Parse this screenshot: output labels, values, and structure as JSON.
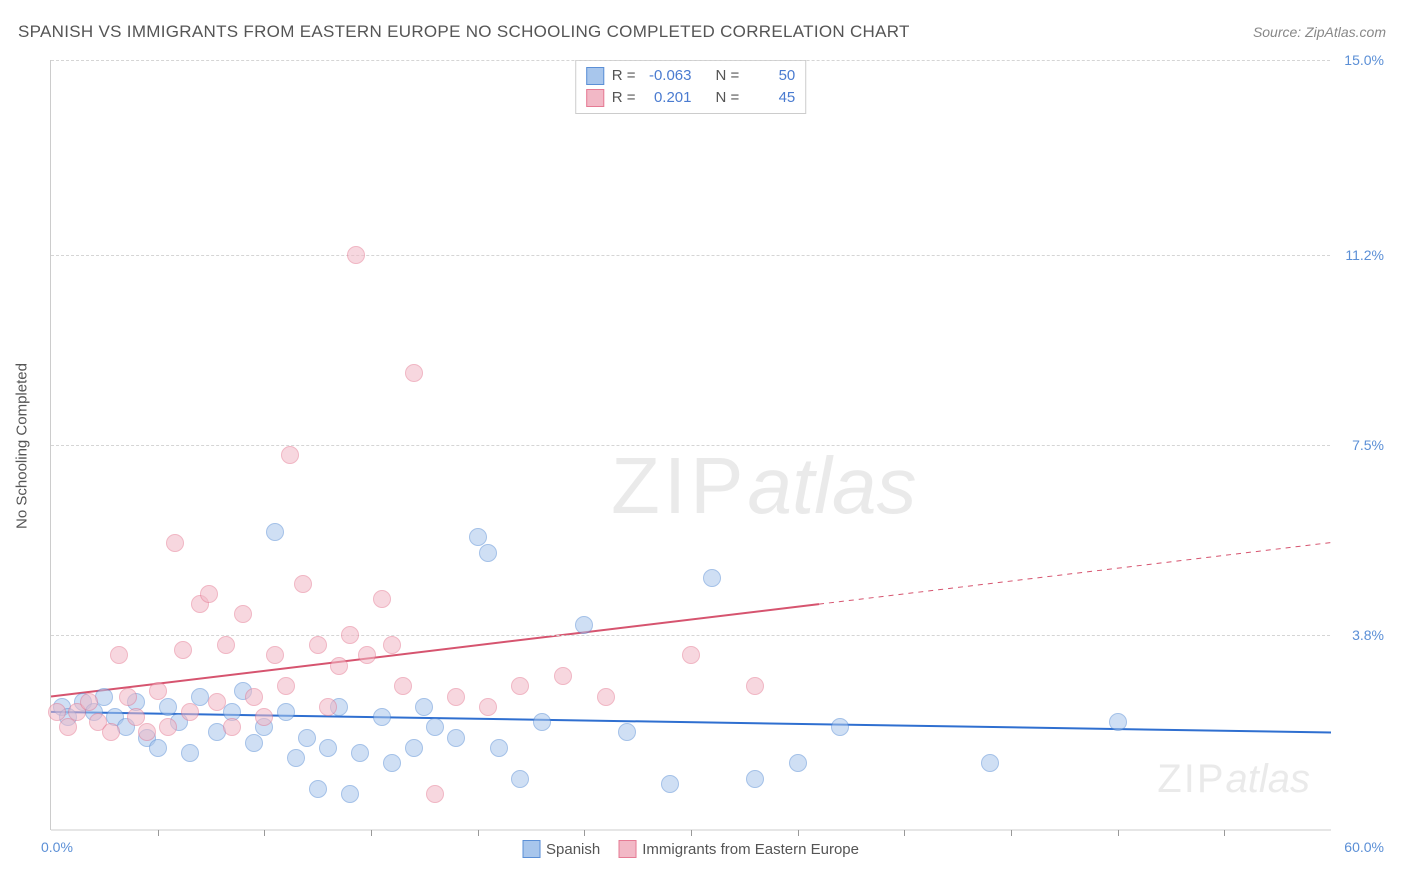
{
  "title": "SPANISH VS IMMIGRANTS FROM EASTERN EUROPE NO SCHOOLING COMPLETED CORRELATION CHART",
  "source": "Source: ZipAtlas.com",
  "y_axis_label": "No Schooling Completed",
  "watermark": {
    "zip": "ZIP",
    "atlas": "atlas"
  },
  "chart": {
    "type": "scatter",
    "background_color": "#ffffff",
    "grid_color": "#d5d5d5",
    "axis_color": "#cccccc",
    "label_color": "#5b8fd6",
    "xlim": [
      0,
      60
    ],
    "ylim": [
      0,
      15
    ],
    "x_min_label": "0.0%",
    "x_max_label": "60.0%",
    "x_ticks_at": [
      5,
      10,
      15,
      20,
      25,
      30,
      35,
      40,
      45,
      50,
      55
    ],
    "y_ticks": [
      {
        "value": 3.8,
        "label": "3.8%"
      },
      {
        "value": 7.5,
        "label": "7.5%"
      },
      {
        "value": 11.2,
        "label": "11.2%"
      },
      {
        "value": 15.0,
        "label": "15.0%"
      }
    ],
    "marker_radius": 9,
    "marker_opacity": 0.55,
    "line_width": 2
  },
  "series": [
    {
      "name": "Spanish",
      "label": "Spanish",
      "color_fill": "#a8c6ec",
      "color_stroke": "#5b8fd6",
      "line_color": "#2f6fd0",
      "R": "-0.063",
      "N": "50",
      "regression": {
        "x1": 0,
        "y1": 2.3,
        "x2": 60,
        "y2": 1.9,
        "solid_until_x": 60
      },
      "points": [
        {
          "x": 0.5,
          "y": 2.4
        },
        {
          "x": 0.8,
          "y": 2.2
        },
        {
          "x": 1.5,
          "y": 2.5
        },
        {
          "x": 2,
          "y": 2.3
        },
        {
          "x": 2.5,
          "y": 2.6
        },
        {
          "x": 3,
          "y": 2.2
        },
        {
          "x": 3.5,
          "y": 2.0
        },
        {
          "x": 4,
          "y": 2.5
        },
        {
          "x": 4.5,
          "y": 1.8
        },
        {
          "x": 5,
          "y": 1.6
        },
        {
          "x": 5.5,
          "y": 2.4
        },
        {
          "x": 6,
          "y": 2.1
        },
        {
          "x": 6.5,
          "y": 1.5
        },
        {
          "x": 7,
          "y": 2.6
        },
        {
          "x": 7.8,
          "y": 1.9
        },
        {
          "x": 8.5,
          "y": 2.3
        },
        {
          "x": 9,
          "y": 2.7
        },
        {
          "x": 9.5,
          "y": 1.7
        },
        {
          "x": 10,
          "y": 2.0
        },
        {
          "x": 10.5,
          "y": 5.8
        },
        {
          "x": 11,
          "y": 2.3
        },
        {
          "x": 11.5,
          "y": 1.4
        },
        {
          "x": 12,
          "y": 1.8
        },
        {
          "x": 12.5,
          "y": 0.8
        },
        {
          "x": 13,
          "y": 1.6
        },
        {
          "x": 13.5,
          "y": 2.4
        },
        {
          "x": 14,
          "y": 0.7
        },
        {
          "x": 14.5,
          "y": 1.5
        },
        {
          "x": 15.5,
          "y": 2.2
        },
        {
          "x": 16,
          "y": 1.3
        },
        {
          "x": 17,
          "y": 1.6
        },
        {
          "x": 17.5,
          "y": 2.4
        },
        {
          "x": 18,
          "y": 2.0
        },
        {
          "x": 19,
          "y": 1.8
        },
        {
          "x": 20,
          "y": 5.7
        },
        {
          "x": 20.5,
          "y": 5.4
        },
        {
          "x": 21,
          "y": 1.6
        },
        {
          "x": 22,
          "y": 1.0
        },
        {
          "x": 23,
          "y": 2.1
        },
        {
          "x": 25,
          "y": 4.0
        },
        {
          "x": 27,
          "y": 1.9
        },
        {
          "x": 29,
          "y": 0.9
        },
        {
          "x": 31,
          "y": 4.9
        },
        {
          "x": 33,
          "y": 1.0
        },
        {
          "x": 35,
          "y": 1.3
        },
        {
          "x": 37,
          "y": 2.0
        },
        {
          "x": 44,
          "y": 1.3
        },
        {
          "x": 50,
          "y": 2.1
        }
      ]
    },
    {
      "name": "Immigrants from Eastern Europe",
      "label": "Immigrants from Eastern Europe",
      "color_fill": "#f2b8c6",
      "color_stroke": "#e57b94",
      "line_color": "#d6546f",
      "R": "0.201",
      "N": "45",
      "regression": {
        "x1": 0,
        "y1": 2.6,
        "x2": 60,
        "y2": 5.6,
        "solid_until_x": 36
      },
      "points": [
        {
          "x": 0.3,
          "y": 2.3
        },
        {
          "x": 0.8,
          "y": 2.0
        },
        {
          "x": 1.2,
          "y": 2.3
        },
        {
          "x": 1.8,
          "y": 2.5
        },
        {
          "x": 2.2,
          "y": 2.1
        },
        {
          "x": 2.8,
          "y": 1.9
        },
        {
          "x": 3.2,
          "y": 3.4
        },
        {
          "x": 3.6,
          "y": 2.6
        },
        {
          "x": 4.0,
          "y": 2.2
        },
        {
          "x": 4.5,
          "y": 1.9
        },
        {
          "x": 5.0,
          "y": 2.7
        },
        {
          "x": 5.5,
          "y": 2.0
        },
        {
          "x": 5.8,
          "y": 5.6
        },
        {
          "x": 6.2,
          "y": 3.5
        },
        {
          "x": 6.5,
          "y": 2.3
        },
        {
          "x": 7.0,
          "y": 4.4
        },
        {
          "x": 7.4,
          "y": 4.6
        },
        {
          "x": 7.8,
          "y": 2.5
        },
        {
          "x": 8.2,
          "y": 3.6
        },
        {
          "x": 8.5,
          "y": 2.0
        },
        {
          "x": 9.0,
          "y": 4.2
        },
        {
          "x": 9.5,
          "y": 2.6
        },
        {
          "x": 10.0,
          "y": 2.2
        },
        {
          "x": 10.5,
          "y": 3.4
        },
        {
          "x": 11.0,
          "y": 2.8
        },
        {
          "x": 11.2,
          "y": 7.3
        },
        {
          "x": 11.8,
          "y": 4.8
        },
        {
          "x": 12.5,
          "y": 3.6
        },
        {
          "x": 13.0,
          "y": 2.4
        },
        {
          "x": 13.5,
          "y": 3.2
        },
        {
          "x": 14.0,
          "y": 3.8
        },
        {
          "x": 14.3,
          "y": 11.2
        },
        {
          "x": 14.8,
          "y": 3.4
        },
        {
          "x": 15.5,
          "y": 4.5
        },
        {
          "x": 16.0,
          "y": 3.6
        },
        {
          "x": 16.5,
          "y": 2.8
        },
        {
          "x": 17.0,
          "y": 8.9
        },
        {
          "x": 18.0,
          "y": 0.7
        },
        {
          "x": 19.0,
          "y": 2.6
        },
        {
          "x": 20.5,
          "y": 2.4
        },
        {
          "x": 22.0,
          "y": 2.8
        },
        {
          "x": 24.0,
          "y": 3.0
        },
        {
          "x": 26.0,
          "y": 2.6
        },
        {
          "x": 30.0,
          "y": 3.4
        },
        {
          "x": 33.0,
          "y": 2.8
        }
      ]
    }
  ],
  "stats_labels": {
    "R": "R =",
    "N": "N ="
  },
  "bottom_legend": {
    "series1": "Spanish",
    "series2": "Immigrants from Eastern Europe"
  }
}
